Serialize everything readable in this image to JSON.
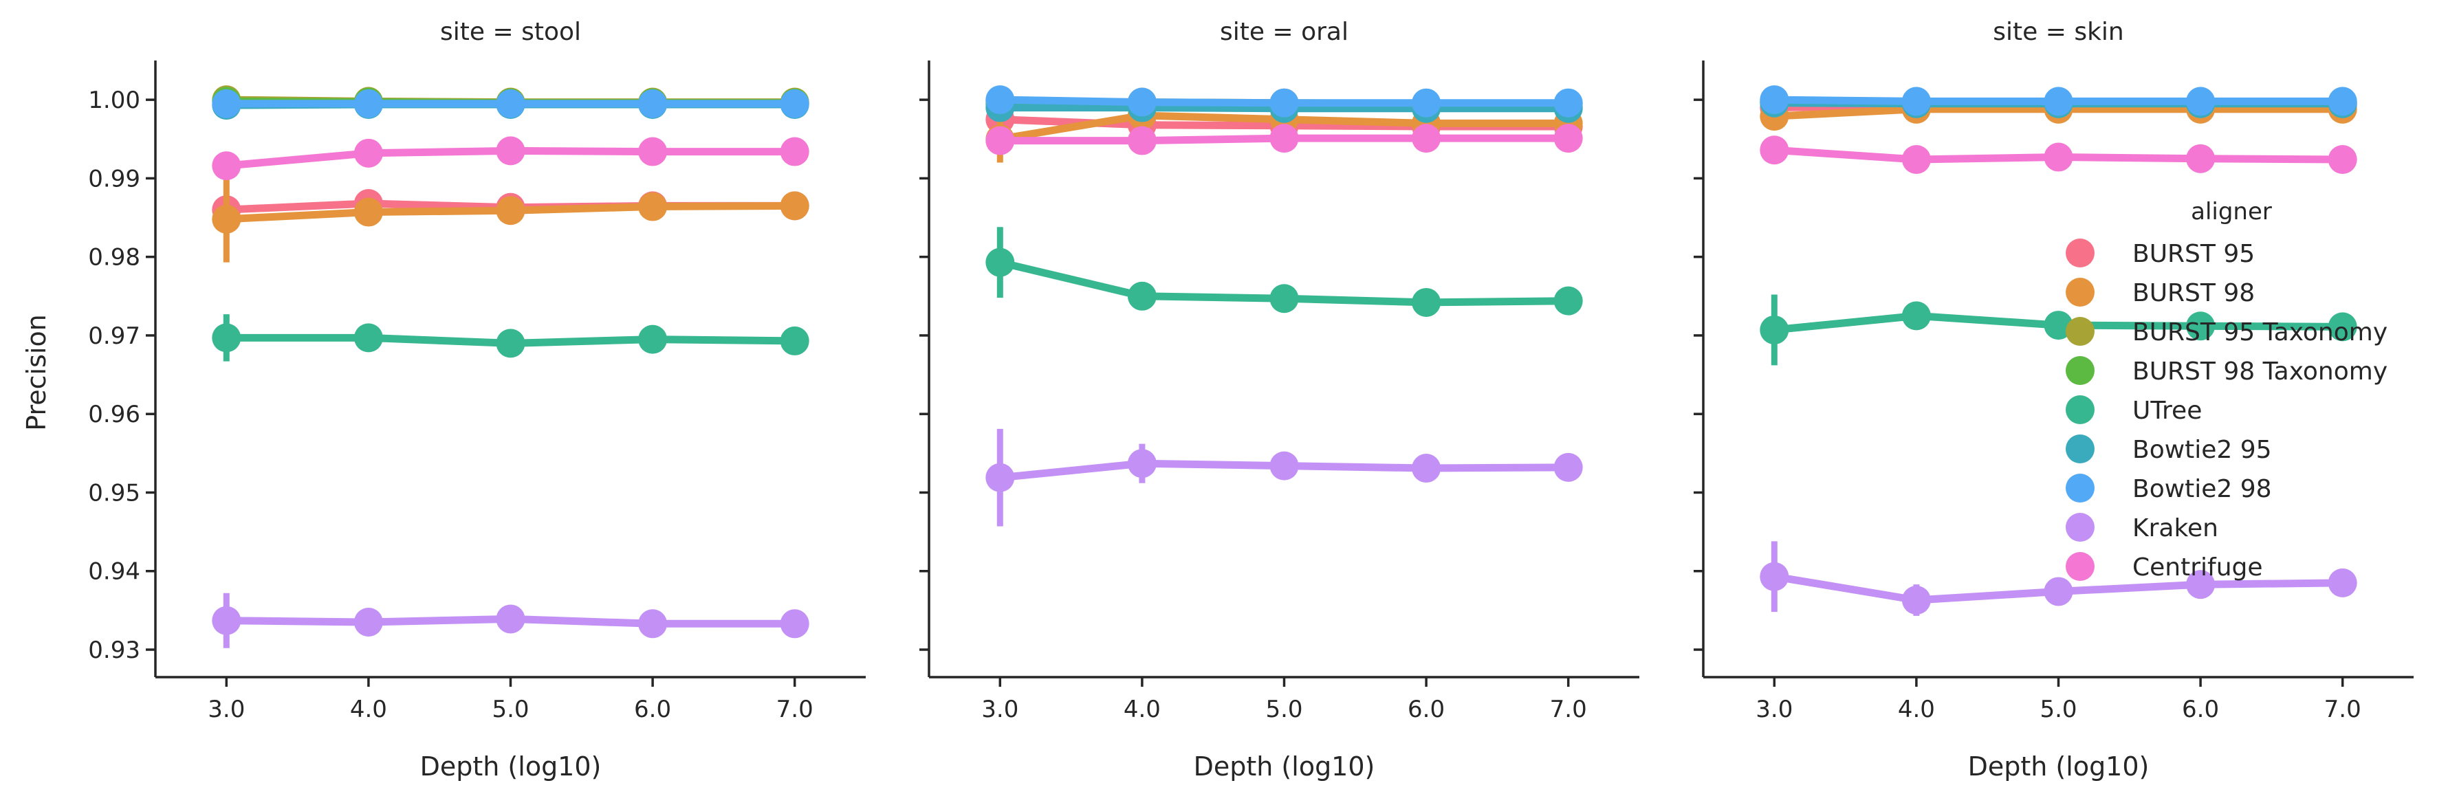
{
  "chart_data": {
    "type": "line",
    "facet_prefix": "site = ",
    "xlabel": "Depth (log10)",
    "ylabel": "Precision",
    "x": [
      3.0,
      4.0,
      5.0,
      6.0,
      7.0
    ],
    "x_tick_labels": [
      "3.0",
      "4.0",
      "5.0",
      "6.0",
      "7.0"
    ],
    "xlim": [
      2.5,
      7.5
    ],
    "ylim": [
      0.9265,
      1.005
    ],
    "y_ticks": [
      0.93,
      0.94,
      0.95,
      0.96,
      0.97,
      0.98,
      0.99,
      1.0
    ],
    "y_tick_labels": [
      "0.93",
      "0.94",
      "0.95",
      "0.96",
      "0.97",
      "0.98",
      "0.99",
      "1.00"
    ],
    "legend": {
      "title": "aligner",
      "placement": "center-right of last panel"
    },
    "aligners": [
      {
        "name": "BURST 95",
        "color": "#f77189"
      },
      {
        "name": "BURST 98",
        "color": "#e5943d"
      },
      {
        "name": "BURST 95 Taxonomy",
        "color": "#a8a335"
      },
      {
        "name": "BURST 98 Taxonomy",
        "color": "#5cb941"
      },
      {
        "name": "UTree",
        "color": "#36b78f"
      },
      {
        "name": "Bowtie2 95",
        "color": "#3aabbc"
      },
      {
        "name": "Bowtie2 98",
        "color": "#52a9f5"
      },
      {
        "name": "Kraken",
        "color": "#c391f5"
      },
      {
        "name": "Centrifuge",
        "color": "#f577d4"
      }
    ],
    "panels": [
      {
        "site": "stool",
        "series": [
          {
            "name": "BURST 95",
            "values": [
              0.986,
              0.9868,
              0.9863,
              0.9865,
              0.9865
            ],
            "err": [
              0.0015,
              0.0005,
              0.0004,
              0.0003,
              0.0003
            ]
          },
          {
            "name": "BURST 98",
            "values": [
              0.9848,
              0.9857,
              0.9859,
              0.9864,
              0.9865
            ],
            "err": [
              0.0055,
              0.0008,
              0.0005,
              0.0003,
              0.0003
            ]
          },
          {
            "name": "BURST 95 Taxonomy",
            "values": [
              1.0,
              0.9998,
              0.9997,
              0.9997,
              0.9997
            ],
            "err": [
              0.0002,
              0.0001,
              0.0001,
              0.0001,
              0.0001
            ]
          },
          {
            "name": "BURST 98 Taxonomy",
            "values": [
              0.9998,
              0.9997,
              0.9996,
              0.9996,
              0.9996
            ],
            "err": [
              0.0002,
              0.0001,
              0.0001,
              0.0001,
              0.0001
            ]
          },
          {
            "name": "UTree",
            "values": [
              0.9697,
              0.9697,
              0.969,
              0.9695,
              0.9693
            ],
            "err": [
              0.003,
              0.0005,
              0.0004,
              0.0003,
              0.0003
            ]
          },
          {
            "name": "Bowtie2 95",
            "values": [
              0.9993,
              0.9994,
              0.9994,
              0.9994,
              0.9994
            ],
            "err": [
              0.0003,
              0.0001,
              0.0001,
              0.0001,
              0.0001
            ]
          },
          {
            "name": "Bowtie2 98",
            "values": [
              0.9995,
              0.9995,
              0.9995,
              0.9995,
              0.9995
            ],
            "err": [
              0.0003,
              0.0001,
              0.0001,
              0.0001,
              0.0001
            ]
          },
          {
            "name": "Kraken",
            "values": [
              0.9337,
              0.9335,
              0.9339,
              0.9333,
              0.9333
            ],
            "err": [
              0.0035,
              0.0015,
              0.0005,
              0.0004,
              0.0003
            ]
          },
          {
            "name": "Centrifuge",
            "values": [
              0.9916,
              0.9932,
              0.9935,
              0.9934,
              0.9934
            ],
            "err": [
              0.001,
              0.0004,
              0.0003,
              0.0002,
              0.0002
            ]
          }
        ]
      },
      {
        "site": "oral",
        "series": [
          {
            "name": "BURST 95",
            "values": [
              0.9975,
              0.9968,
              0.9967,
              0.9966,
              0.9966
            ],
            "err": [
              0.0015,
              0.0004,
              0.0003,
              0.0002,
              0.0002
            ]
          },
          {
            "name": "BURST 98",
            "values": [
              0.995,
              0.998,
              0.9975,
              0.997,
              0.997
            ],
            "err": [
              0.003,
              0.0005,
              0.0003,
              0.0002,
              0.0002
            ]
          },
          {
            "name": "BURST 95 Taxonomy",
            "values": [
              0.9998,
              0.9997,
              0.9996,
              0.9995,
              0.9995
            ],
            "err": [
              0.0002,
              0.0001,
              0.0001,
              0.0001,
              0.0001
            ]
          },
          {
            "name": "BURST 98 Taxonomy",
            "values": [
              0.9995,
              0.9993,
              0.9992,
              0.9991,
              0.9991
            ],
            "err": [
              0.0002,
              0.0001,
              0.0001,
              0.0001,
              0.0001
            ]
          },
          {
            "name": "UTree",
            "values": [
              0.9793,
              0.975,
              0.9747,
              0.9742,
              0.9744
            ],
            "err": [
              0.0045,
              0.0008,
              0.0005,
              0.0004,
              0.0003
            ]
          },
          {
            "name": "Bowtie2 95",
            "values": [
              0.999,
              0.999,
              0.9989,
              0.9989,
              0.9989
            ],
            "err": [
              0.0003,
              0.0001,
              0.0001,
              0.0001,
              0.0001
            ]
          },
          {
            "name": "Bowtie2 98",
            "values": [
              1.0,
              0.9997,
              0.9996,
              0.9996,
              0.9996
            ],
            "err": [
              0.0003,
              0.0001,
              0.0001,
              0.0001,
              0.0001
            ]
          },
          {
            "name": "Kraken",
            "values": [
              0.9519,
              0.9537,
              0.9534,
              0.9531,
              0.9532
            ],
            "err": [
              0.0062,
              0.0025,
              0.0008,
              0.0005,
              0.0004
            ]
          },
          {
            "name": "Centrifuge",
            "values": [
              0.9948,
              0.9948,
              0.9951,
              0.9951,
              0.9951
            ],
            "err": [
              0.001,
              0.0004,
              0.0003,
              0.0002,
              0.0002
            ]
          }
        ]
      },
      {
        "site": "skin",
        "series": [
          {
            "name": "BURST 95",
            "values": [
              0.999,
              0.9993,
              0.9993,
              0.9993,
              0.9993
            ],
            "err": [
              0.0008,
              0.0003,
              0.0002,
              0.0001,
              0.0001
            ]
          },
          {
            "name": "BURST 98",
            "values": [
              0.9979,
              0.9988,
              0.9988,
              0.9988,
              0.9988
            ],
            "err": [
              0.0012,
              0.0004,
              0.0002,
              0.0001,
              0.0001
            ]
          },
          {
            "name": "BURST 95 Taxonomy",
            "values": [
              0.9998,
              0.9997,
              0.9997,
              0.9997,
              0.9997
            ],
            "err": [
              0.0002,
              0.0001,
              0.0001,
              0.0001,
              0.0001
            ]
          },
          {
            "name": "BURST 98 Taxonomy",
            "values": [
              0.9997,
              0.9996,
              0.9996,
              0.9996,
              0.9996
            ],
            "err": [
              0.0002,
              0.0001,
              0.0001,
              0.0001,
              0.0001
            ]
          },
          {
            "name": "UTree",
            "values": [
              0.9707,
              0.9725,
              0.9713,
              0.9712,
              0.9711
            ],
            "err": [
              0.0045,
              0.001,
              0.0005,
              0.0004,
              0.0003
            ]
          },
          {
            "name": "Bowtie2 95",
            "values": [
              0.9996,
              0.9995,
              0.9995,
              0.9995,
              0.9995
            ],
            "err": [
              0.0002,
              0.0001,
              0.0001,
              0.0001,
              0.0001
            ]
          },
          {
            "name": "Bowtie2 98",
            "values": [
              1.0,
              0.9998,
              0.9998,
              0.9998,
              0.9998
            ],
            "err": [
              0.0002,
              0.0001,
              0.0001,
              0.0001,
              0.0001
            ]
          },
          {
            "name": "Kraken",
            "values": [
              0.9393,
              0.9363,
              0.9374,
              0.9383,
              0.9385
            ],
            "err": [
              0.0045,
              0.002,
              0.0008,
              0.0005,
              0.0004
            ]
          },
          {
            "name": "Centrifuge",
            "values": [
              0.9936,
              0.9924,
              0.9927,
              0.9925,
              0.9924
            ],
            "err": [
              0.0008,
              0.0004,
              0.0003,
              0.0002,
              0.0002
            ]
          }
        ]
      }
    ]
  }
}
